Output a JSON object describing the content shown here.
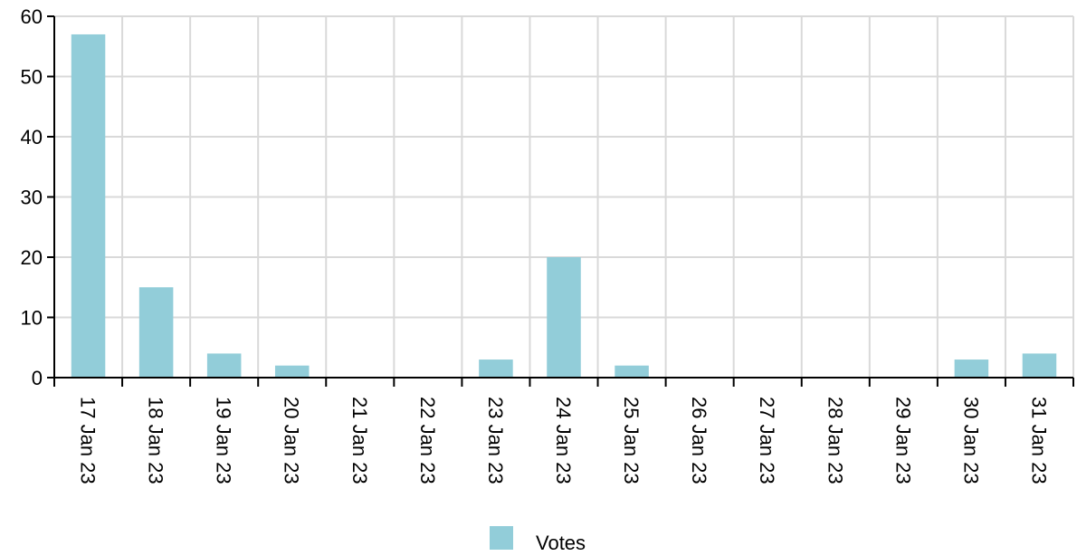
{
  "chart_data": {
    "type": "bar",
    "categories": [
      "17 Jan 23",
      "18 Jan 23",
      "19 Jan 23",
      "20 Jan 23",
      "21 Jan 23",
      "22 Jan 23",
      "23 Jan 23",
      "24 Jan 23",
      "25 Jan 23",
      "26 Jan 23",
      "27 Jan 23",
      "28 Jan 23",
      "29 Jan 23",
      "30 Jan 23",
      "31 Jan 23"
    ],
    "series": [
      {
        "name": "Votes",
        "values": [
          57,
          15,
          4,
          2,
          0,
          0,
          3,
          20,
          2,
          0,
          0,
          0,
          0,
          3,
          4
        ],
        "color": "#92cdd9"
      }
    ],
    "ylim": [
      0,
      60
    ],
    "yticks": [
      0,
      10,
      20,
      30,
      40,
      50,
      60
    ],
    "grid": true,
    "legend_position": "bottom-center"
  }
}
